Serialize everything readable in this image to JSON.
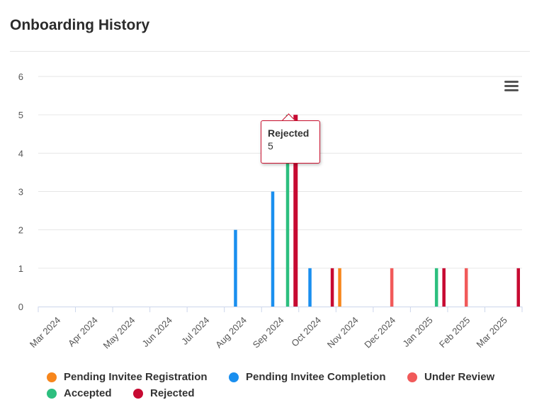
{
  "title": "Onboarding History",
  "menu_icon": "hamburger-menu-icon",
  "chart_data": {
    "type": "bar",
    "categories": [
      "Mar 2024",
      "Apr 2024",
      "May 2024",
      "Jun 2024",
      "Jul 2024",
      "Aug 2024",
      "Sep 2024",
      "Oct 2024",
      "Nov 2024",
      "Dec 2024",
      "Jan 2025",
      "Feb 2025",
      "Mar 2025"
    ],
    "ylim": [
      0,
      6
    ],
    "yticks": [
      "0",
      "1",
      "2",
      "3",
      "4",
      "5",
      "6"
    ],
    "grid": true,
    "legend_placement": "bottom",
    "series": [
      {
        "name": "Pending Invitee Registration",
        "color": "#f7861c",
        "values": [
          0,
          0,
          0,
          0,
          0,
          0,
          0,
          0,
          1,
          0,
          0,
          0,
          0
        ]
      },
      {
        "name": "Pending Invitee Completion",
        "color": "#1a8fef",
        "values": [
          0,
          0,
          0,
          0,
          0,
          2,
          3,
          1,
          0,
          0,
          0,
          0,
          0
        ]
      },
      {
        "name": "Under Review",
        "color": "#f15a5a",
        "values": [
          0,
          0,
          0,
          0,
          0,
          0,
          0,
          0,
          0,
          1,
          0,
          1,
          0
        ]
      },
      {
        "name": "Accepted",
        "color": "#2dbf7f",
        "values": [
          0,
          0,
          0,
          0,
          0,
          0,
          5,
          0,
          0,
          0,
          1,
          0,
          0
        ]
      },
      {
        "name": "Rejected",
        "color": "#c70a32",
        "values": [
          0,
          0,
          0,
          0,
          0,
          0,
          5,
          1,
          0,
          0,
          1,
          0,
          1
        ]
      }
    ]
  },
  "tooltip": {
    "series": "Rejected",
    "value": "5"
  }
}
